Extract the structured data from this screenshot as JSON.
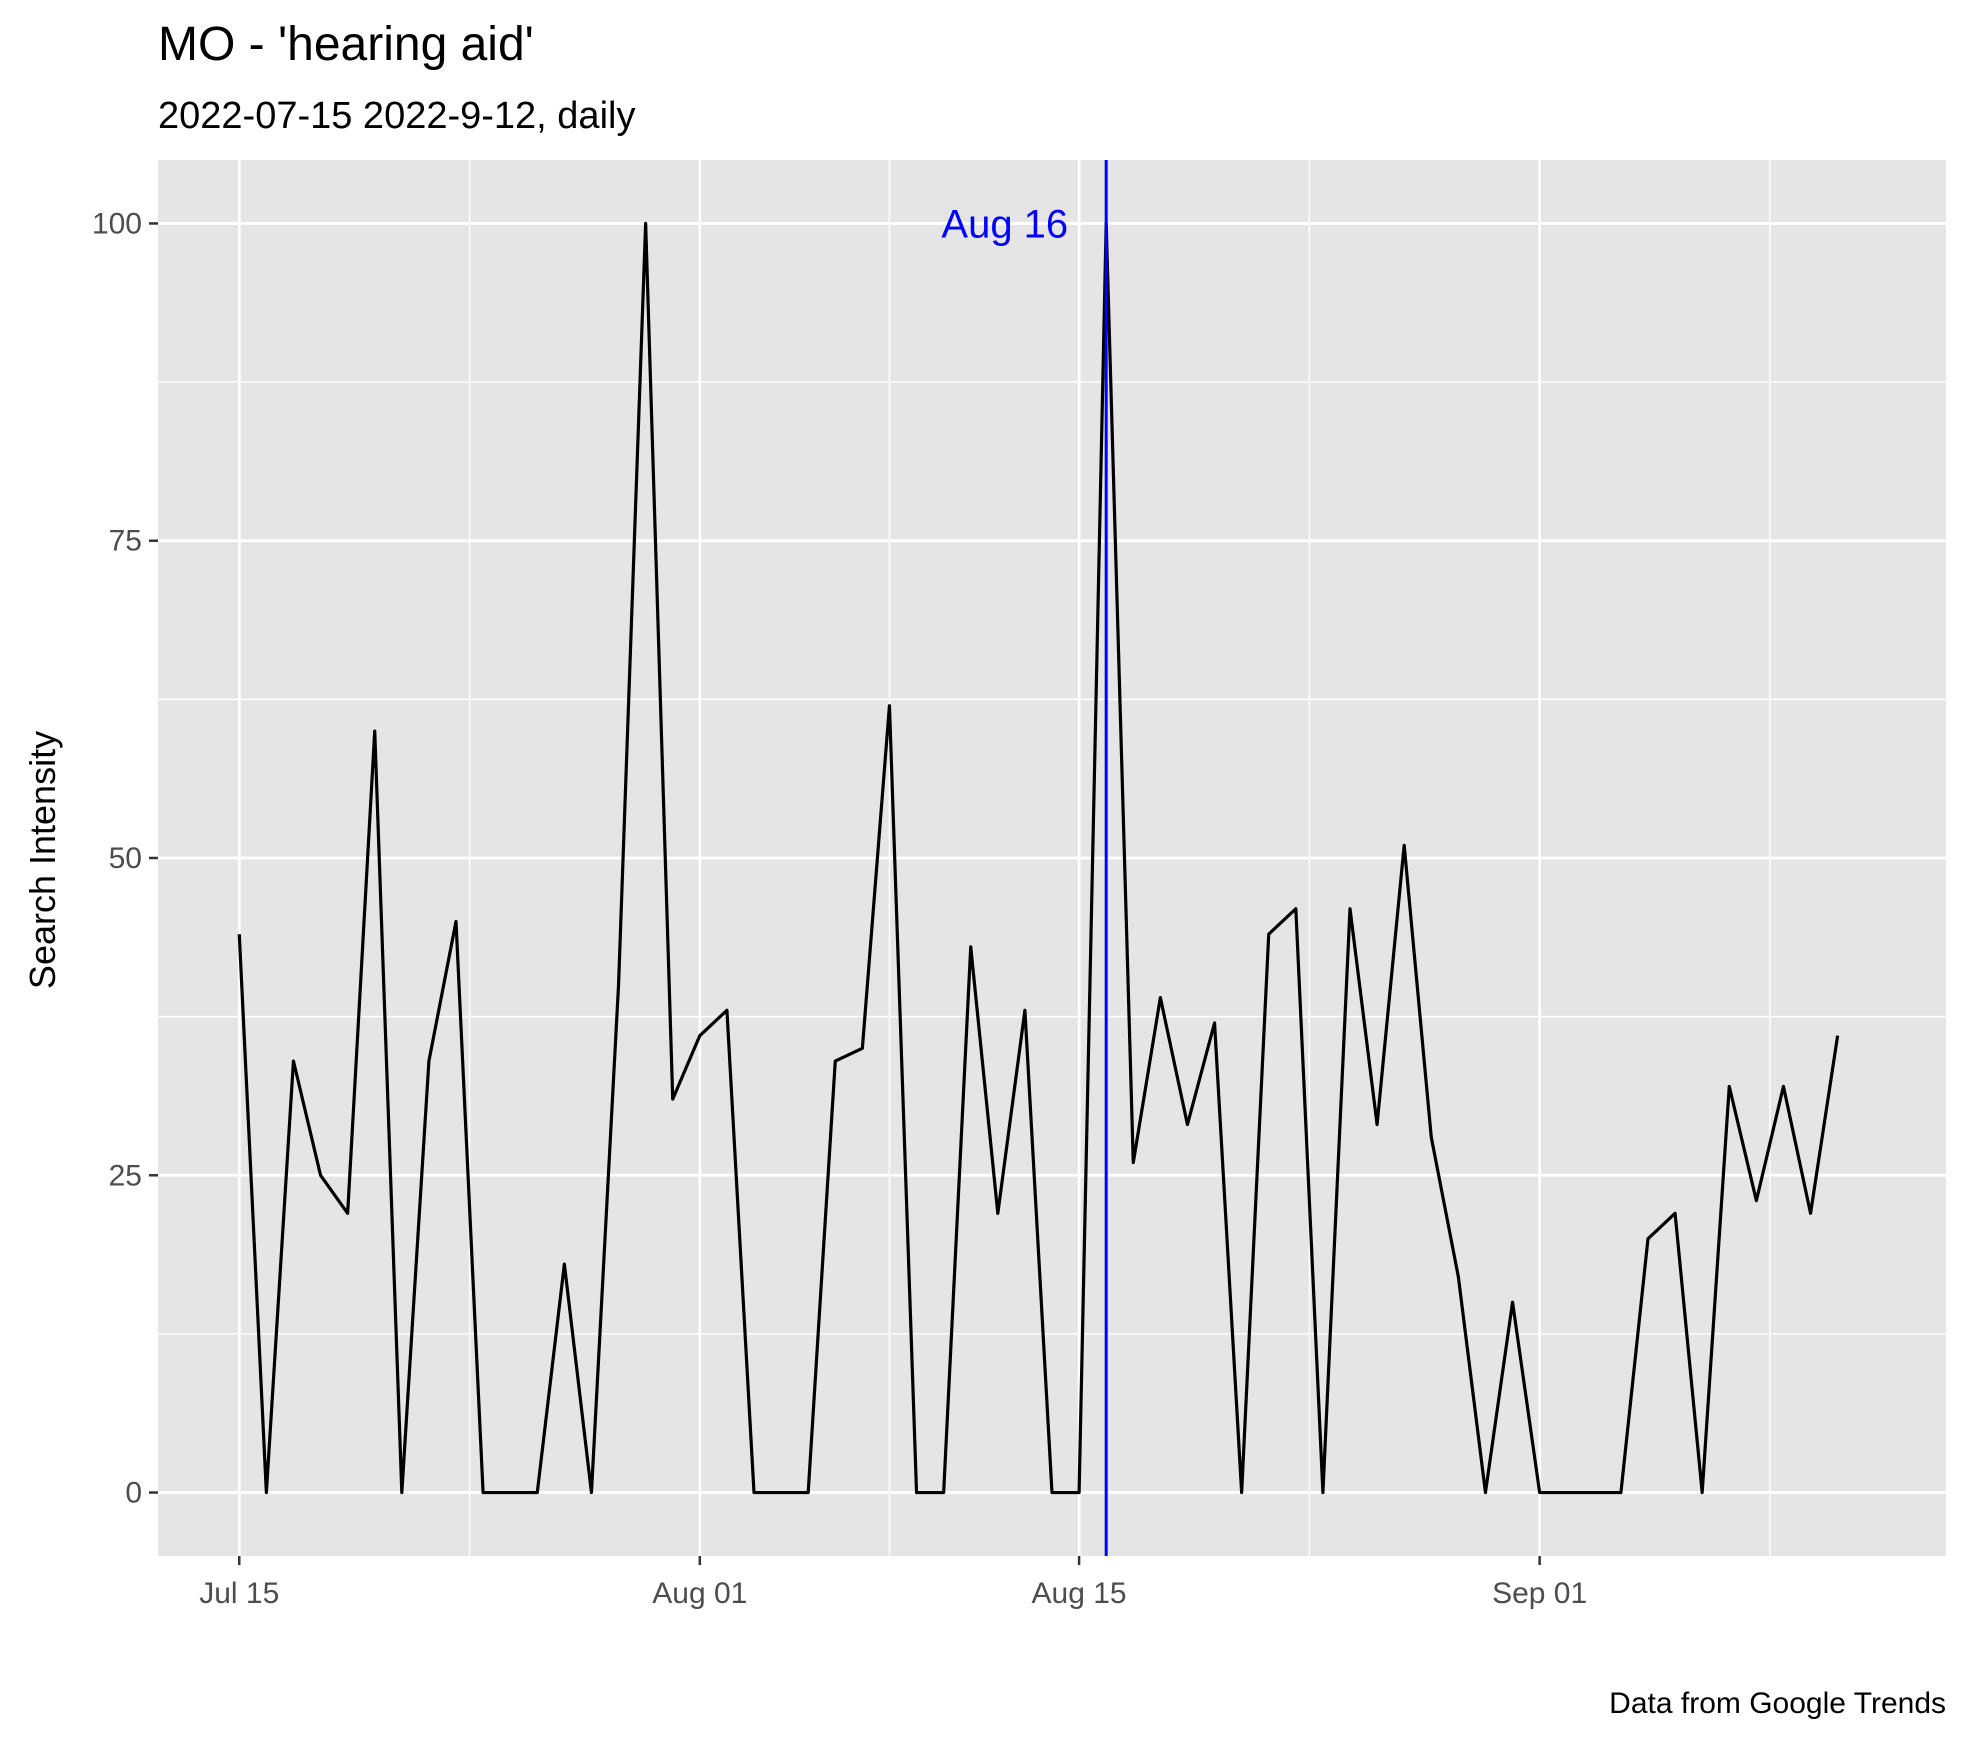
{
  "chart_data": {
    "type": "line",
    "title": "MO  - 'hearing aid'",
    "subtitle": "2022-07-15 2022-9-12, daily",
    "xlabel": "",
    "ylabel": "Search Intensity",
    "caption": "Data from Google Trends",
    "x_start": "2022-07-15",
    "x_end": "2022-09-12",
    "xlim_days": [
      -3,
      63
    ],
    "ylim": [
      -5,
      105
    ],
    "grid": true,
    "x_ticks": [
      {
        "label": "Jul 15",
        "day": 0
      },
      {
        "label": "Aug 01",
        "day": 17
      },
      {
        "label": "Aug 15",
        "day": 31
      },
      {
        "label": "Sep 01",
        "day": 48
      }
    ],
    "x_minor_days": [
      8.5,
      24,
      39.5,
      56.5
    ],
    "y_ticks": [
      0,
      25,
      50,
      75,
      100
    ],
    "y_minor": [
      12.5,
      37.5,
      62.5,
      87.5
    ],
    "series": [
      {
        "name": "hearing aid",
        "color": "#000000",
        "x_day": [
          0,
          1,
          2,
          3,
          4,
          5,
          6,
          7,
          8,
          9,
          10,
          11,
          12,
          13,
          14,
          15,
          16,
          17,
          18,
          19,
          20,
          21,
          22,
          23,
          24,
          25,
          26,
          27,
          28,
          29,
          30,
          31,
          32,
          33,
          34,
          35,
          36,
          37,
          38,
          39,
          40,
          41,
          42,
          43,
          44,
          45,
          46,
          47,
          48,
          49,
          50,
          51,
          52,
          53,
          54,
          55,
          56,
          57,
          58,
          59
        ],
        "values": [
          44,
          0,
          34,
          25,
          22,
          60,
          0,
          34,
          45,
          0,
          0,
          0,
          18,
          0,
          40,
          100,
          31,
          36,
          38,
          0,
          0,
          0,
          34,
          35,
          62,
          0,
          0,
          43,
          22,
          38,
          0,
          0,
          100,
          26,
          39,
          29,
          37,
          0,
          44,
          46,
          0,
          46,
          29,
          51,
          28,
          17,
          0,
          15,
          0,
          0,
          0,
          0,
          20,
          22,
          0,
          32,
          23,
          32,
          22,
          36
        ]
      }
    ],
    "vline": {
      "day": 32,
      "label": "Aug 16",
      "label_y": 100,
      "color": "#0000ff"
    },
    "panel_color": "#e5e5e5",
    "grid_color": "#ffffff",
    "tick_color": "#333333"
  }
}
